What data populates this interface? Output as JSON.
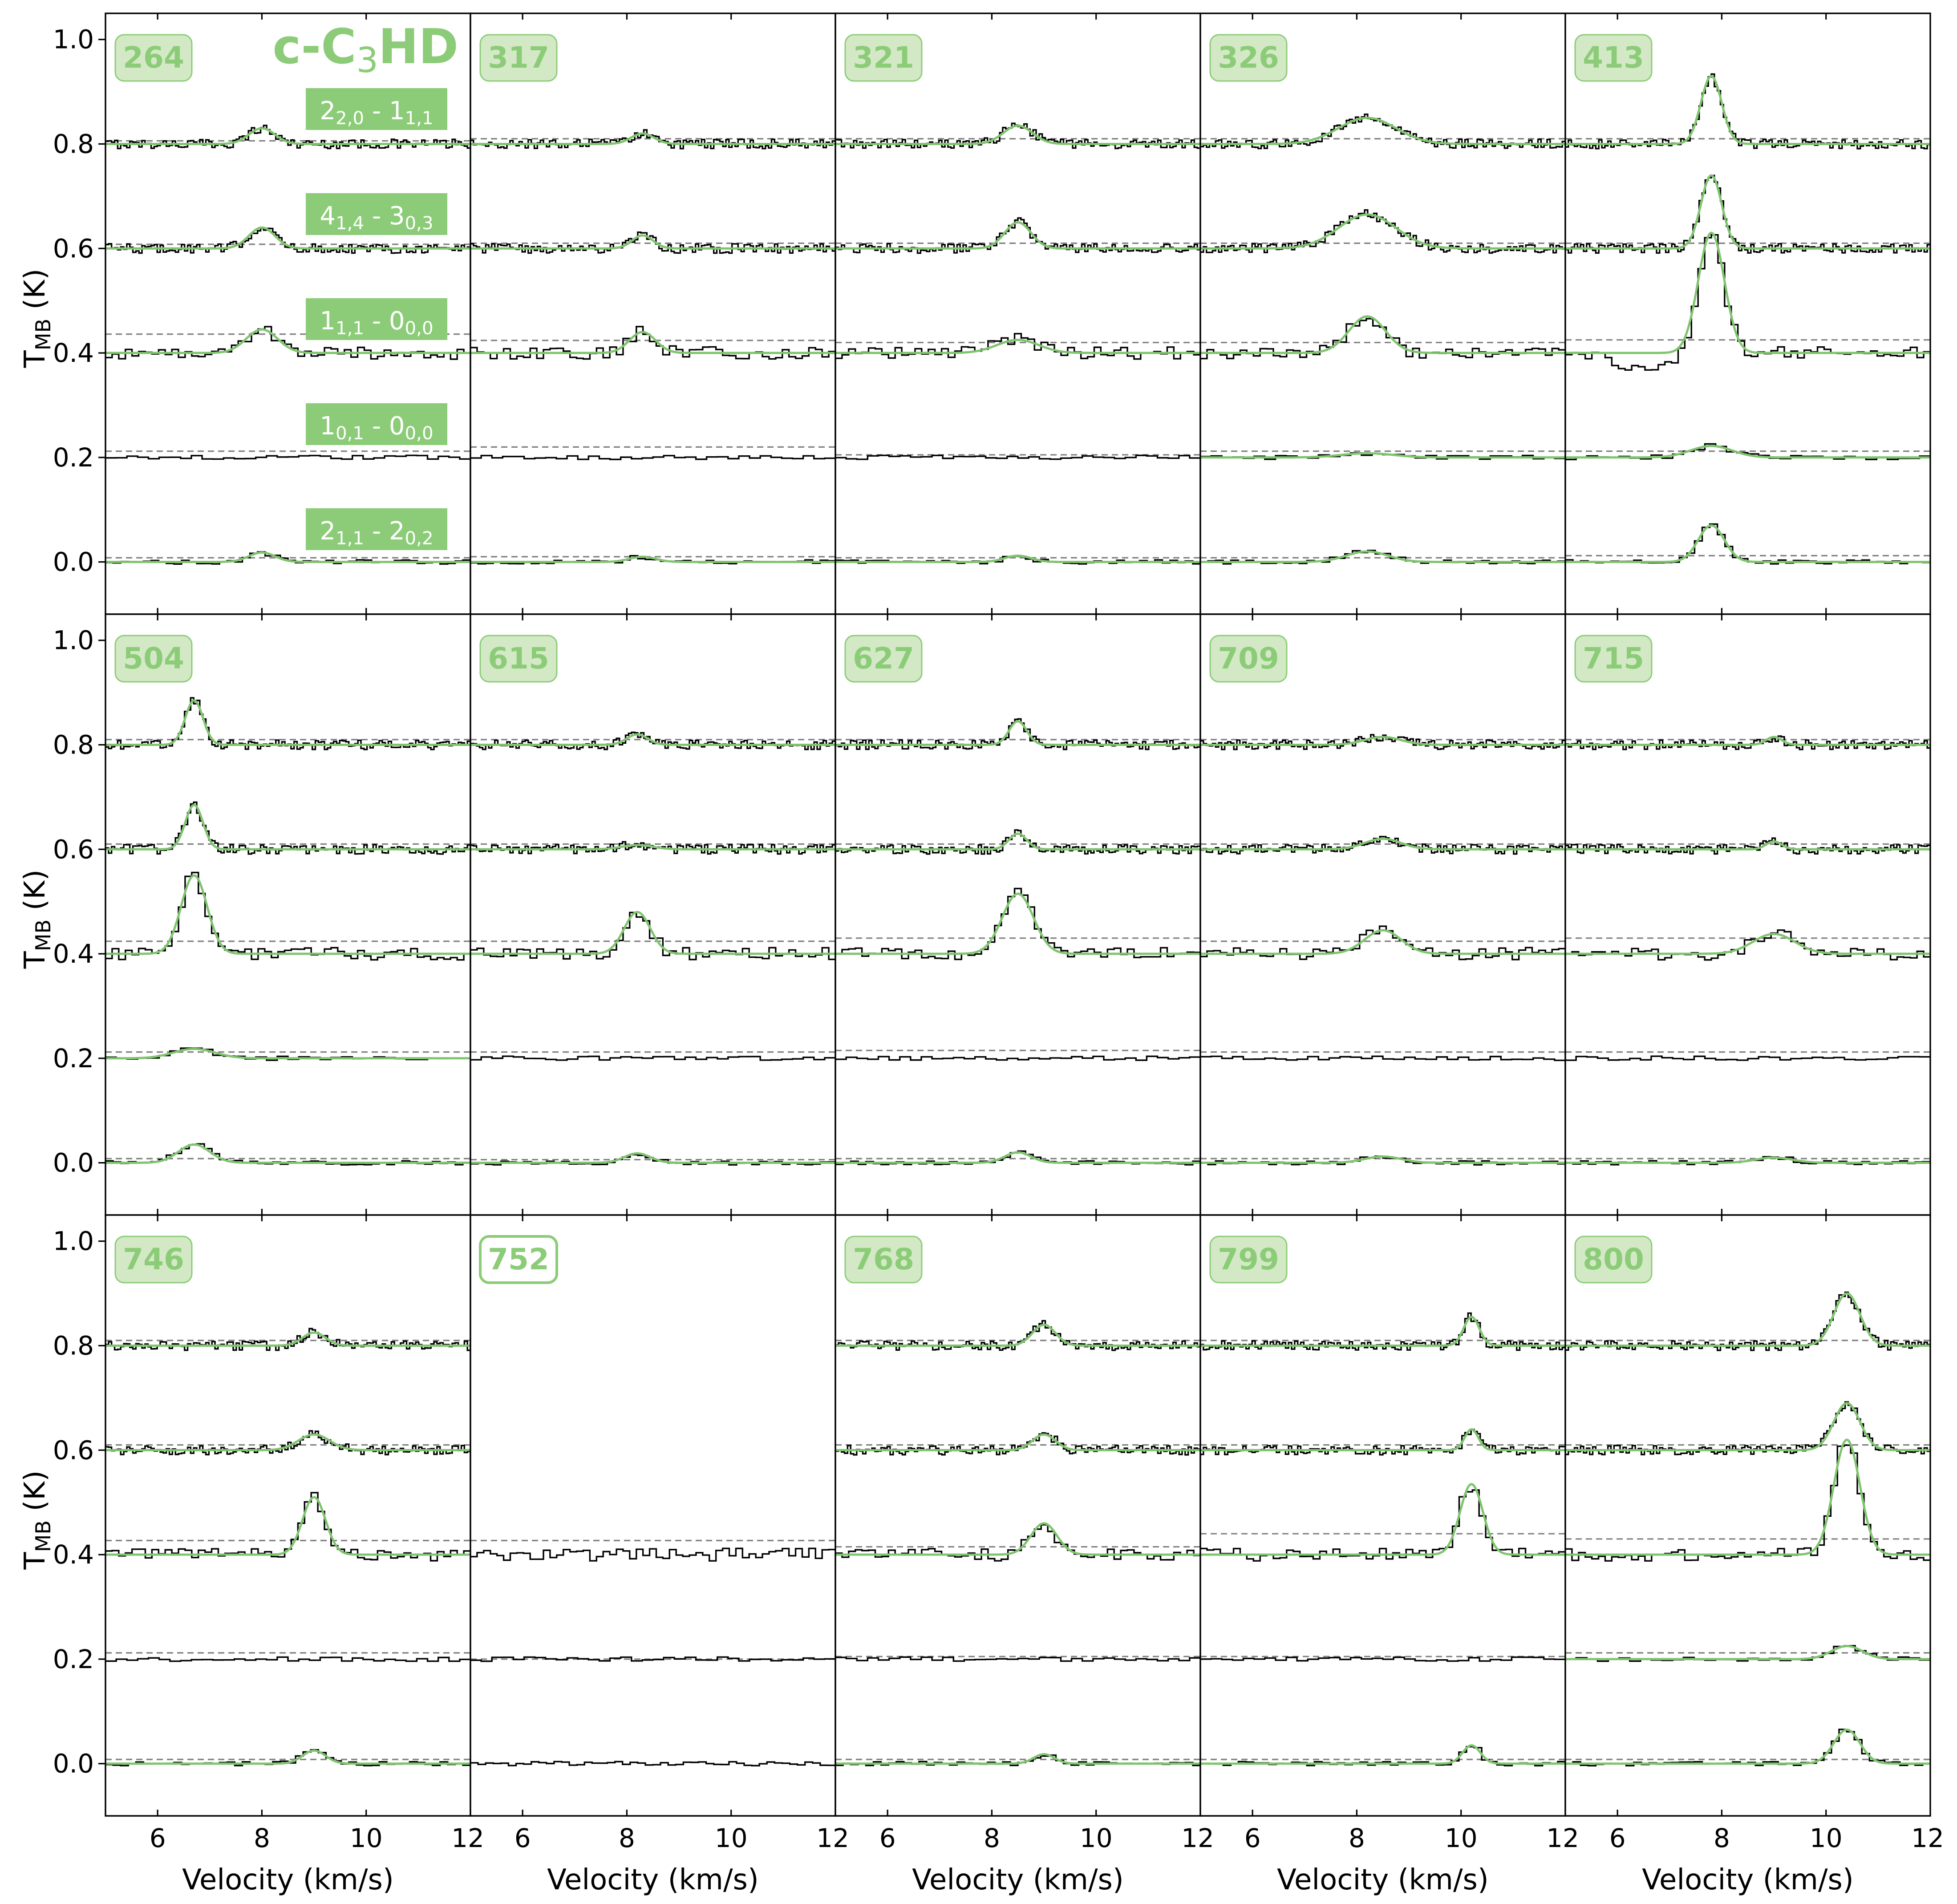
{
  "figure": {
    "molecule_label": "c-C3HD",
    "x_axis_label": "Velocity (km/s)",
    "y_axis_label": "T_MB (K)",
    "x_ticks": [
      6,
      8,
      10,
      12
    ],
    "y_ticks": [
      "0.0",
      "0.2",
      "0.4",
      "0.6",
      "0.8",
      "1.0"
    ],
    "transitions": [
      "2_{2,0} - 1_{1,1}",
      "4_{1,4} - 3_{0,3}",
      "1_{1,1} - 0_{0,0}",
      "1_{0,1} - 0_{0,0}",
      "2_{1,1} - 2_{0,2}"
    ],
    "colors": {
      "fit": "#7fc46e",
      "label_fill": "#d3e9c6",
      "label_text": "#8ccc78",
      "transition_box": "#8ccc78",
      "spectrum": "#000000",
      "threshold": "#808080"
    }
  },
  "chart_data": {
    "type": "line",
    "xlabel": "Velocity (km/s)",
    "ylabel": "T_MB (K)",
    "xlim": [
      5,
      12
    ],
    "ylim": [
      -0.1,
      1.05
    ],
    "grid": false,
    "layout": "3 rows x 5 columns",
    "offsets": [
      0.8,
      0.6,
      0.4,
      0.2,
      0.0
    ],
    "series_order": [
      "2_{2,0} - 1_{1,1}",
      "4_{1,4} - 3_{0,3}",
      "1_{1,1} - 0_{0,0}",
      "1_{0,1} - 0_{0,0}",
      "2_{1,1} - 2_{0,2}"
    ],
    "panels": [
      {
        "id": "264",
        "v": 8.0,
        "amps": [
          0.03,
          0.04,
          0.045,
          0,
          0.018
        ],
        "widths": [
          0.25,
          0.25,
          0.3,
          0.3,
          0.25
        ],
        "fit": [
          true,
          true,
          true,
          false,
          true
        ],
        "thresh": [
          0.806,
          0.608,
          0.436,
          0.212,
          0.008
        ],
        "label_style": "filled"
      },
      {
        "id": "317",
        "v": 8.3,
        "amps": [
          0.02,
          0.025,
          0.04,
          0,
          0.01
        ],
        "widths": [
          0.22,
          0.2,
          0.25,
          0.3,
          0.25
        ],
        "fit": [
          true,
          true,
          true,
          false,
          true
        ],
        "thresh": [
          0.81,
          0.61,
          0.424,
          0.22,
          0.01
        ],
        "label_style": "filled"
      },
      {
        "id": "321",
        "v": 8.5,
        "amps": [
          0.035,
          0.05,
          0.025,
          0,
          0.012
        ],
        "widths": [
          0.28,
          0.25,
          0.4,
          0.3,
          0.25
        ],
        "fit": [
          true,
          true,
          true,
          false,
          true
        ],
        "thresh": [
          0.81,
          0.61,
          0.42,
          0.205,
          0.008
        ],
        "label_style": "filled"
      },
      {
        "id": "326",
        "v": 8.2,
        "amps": [
          0.05,
          0.065,
          0.07,
          0.008,
          0.02
        ],
        "widths": [
          0.55,
          0.55,
          0.35,
          0.5,
          0.4
        ],
        "fit": [
          true,
          true,
          true,
          true,
          true
        ],
        "thresh": [
          0.81,
          0.61,
          0.42,
          0.212,
          0.008
        ],
        "label_style": "filled"
      },
      {
        "id": "413",
        "v": 7.8,
        "amps": [
          0.13,
          0.14,
          0.23,
          0.022,
          0.07
        ],
        "widths": [
          0.2,
          0.2,
          0.25,
          0.4,
          0.25
        ],
        "fit": [
          true,
          true,
          true,
          true,
          true
        ],
        "thresh": [
          0.81,
          0.61,
          0.425,
          0.212,
          0.012
        ],
        "label_style": "filled"
      },
      {
        "id": "504",
        "v": 6.7,
        "amps": [
          0.085,
          0.085,
          0.15,
          0.018,
          0.035
        ],
        "widths": [
          0.17,
          0.17,
          0.25,
          0.4,
          0.3
        ],
        "fit": [
          true,
          true,
          true,
          true,
          true
        ],
        "thresh": [
          0.81,
          0.61,
          0.424,
          0.212,
          0.008
        ],
        "label_style": "filled"
      },
      {
        "id": "615",
        "v": 8.2,
        "amps": [
          0.02,
          0.008,
          0.08,
          0,
          0.018
        ],
        "widths": [
          0.2,
          0.3,
          0.25,
          0.3,
          0.25
        ],
        "fit": [
          true,
          true,
          true,
          false,
          true
        ],
        "thresh": [
          0.81,
          0.61,
          0.424,
          0.212,
          0.006
        ],
        "label_style": "filled"
      },
      {
        "id": "627",
        "v": 8.5,
        "amps": [
          0.045,
          0.03,
          0.115,
          0,
          0.02
        ],
        "widths": [
          0.17,
          0.17,
          0.3,
          0.3,
          0.25
        ],
        "fit": [
          true,
          true,
          true,
          false,
          true
        ],
        "thresh": [
          0.81,
          0.61,
          0.43,
          0.215,
          0.008
        ],
        "label_style": "filled"
      },
      {
        "id": "709",
        "v": 8.5,
        "amps": [
          0.015,
          0.02,
          0.045,
          0,
          0.012
        ],
        "widths": [
          0.35,
          0.35,
          0.35,
          0.3,
          0.35
        ],
        "fit": [
          true,
          true,
          true,
          false,
          true
        ],
        "thresh": [
          0.81,
          0.61,
          0.424,
          0.212,
          0.008
        ],
        "label_style": "filled"
      },
      {
        "id": "715",
        "v": 9.0,
        "amps": [
          0.015,
          0.015,
          0.038,
          0,
          0.01
        ],
        "widths": [
          0.15,
          0.15,
          0.4,
          0.3,
          0.35
        ],
        "fit": [
          true,
          true,
          true,
          false,
          true
        ],
        "thresh": [
          0.81,
          0.61,
          0.43,
          0.212,
          0.008
        ],
        "label_style": "filled"
      },
      {
        "id": "746",
        "v": 9.0,
        "amps": [
          0.025,
          0.03,
          0.11,
          0,
          0.025
        ],
        "widths": [
          0.22,
          0.3,
          0.22,
          0.3,
          0.22
        ],
        "fit": [
          true,
          true,
          true,
          false,
          true
        ],
        "thresh": [
          0.81,
          0.61,
          0.427,
          0.212,
          0.008
        ],
        "label_style": "filled"
      },
      {
        "id": "752",
        "v": 9.0,
        "amps": [
          0,
          0,
          0,
          0,
          0
        ],
        "widths": [
          0.3,
          0.3,
          0.3,
          0.3,
          0.3
        ],
        "fit": [
          false,
          false,
          false,
          false,
          false
        ],
        "thresh": [
          null,
          null,
          0.427,
          0.2,
          null
        ],
        "label_style": "outline",
        "missing": [
          true,
          true,
          false,
          false,
          false
        ]
      },
      {
        "id": "768",
        "v": 9.0,
        "amps": [
          0.04,
          0.03,
          0.06,
          0,
          0.018
        ],
        "widths": [
          0.22,
          0.22,
          0.25,
          0.3,
          0.2
        ],
        "fit": [
          true,
          true,
          true,
          false,
          true
        ],
        "thresh": [
          0.81,
          0.61,
          0.415,
          0.205,
          0.008
        ],
        "label_style": "filled"
      },
      {
        "id": "799",
        "v": 10.2,
        "amps": [
          0.055,
          0.04,
          0.135,
          0,
          0.035
        ],
        "widths": [
          0.15,
          0.13,
          0.22,
          0.3,
          0.17
        ],
        "fit": [
          true,
          true,
          true,
          false,
          true
        ],
        "thresh": [
          0.81,
          0.61,
          0.44,
          0.205,
          0.008
        ],
        "label_style": "filled"
      },
      {
        "id": "800",
        "v": 10.4,
        "amps": [
          0.1,
          0.09,
          0.22,
          0.025,
          0.065
        ],
        "widths": [
          0.25,
          0.25,
          0.25,
          0.3,
          0.25
        ],
        "fit": [
          true,
          true,
          true,
          true,
          true
        ],
        "thresh": [
          0.81,
          0.61,
          0.43,
          0.212,
          0.008
        ],
        "label_style": "filled"
      }
    ]
  }
}
